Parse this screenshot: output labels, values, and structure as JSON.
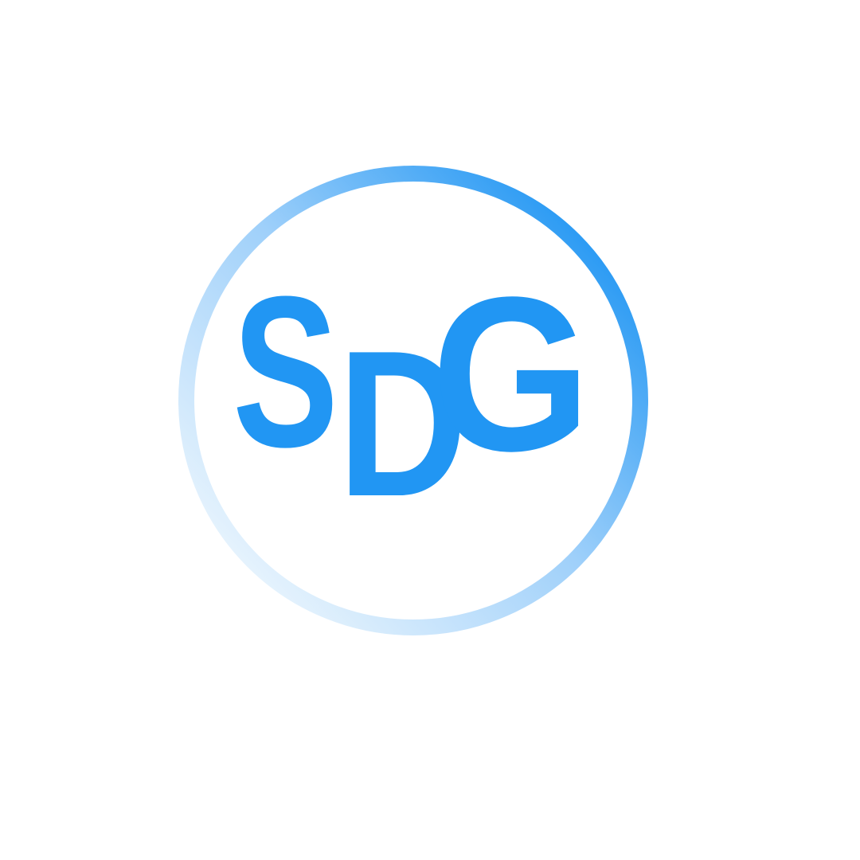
{
  "logo": {
    "letters": [
      "S",
      "D",
      "G"
    ]
  }
}
